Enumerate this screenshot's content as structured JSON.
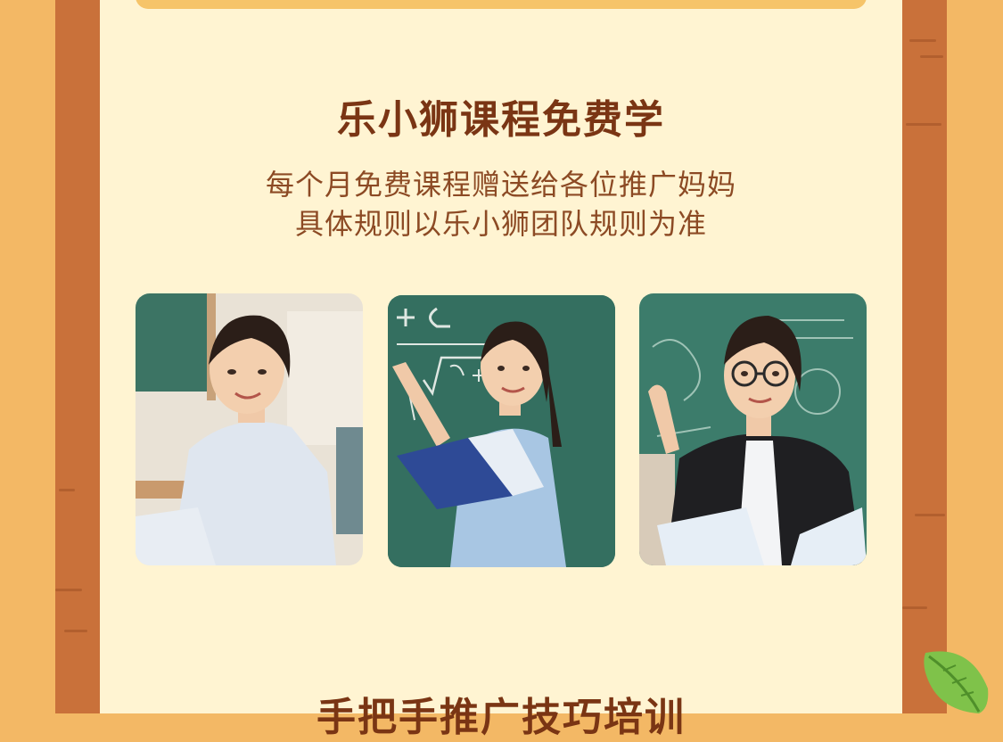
{
  "section": {
    "title": "乐小狮课程免费学",
    "subtitle_line1": "每个月免费课程赠送给各位推广妈妈",
    "subtitle_line2": "具体规则以乐小狮团队规则为准"
  },
  "photos": [
    {
      "description": "teacher-sitting-classroom"
    },
    {
      "description": "teacher-at-chalkboard-with-book"
    },
    {
      "description": "teacher-with-glasses-raising-hand"
    }
  ],
  "next_section": {
    "title": "手把手推广技巧培训"
  },
  "colors": {
    "background": "#f3b865",
    "panel": "#fff4d2",
    "wood": "#c9713a",
    "title": "#7a3514",
    "subtitle": "#8c4a24",
    "chalkboard": "#2f6b5c"
  }
}
